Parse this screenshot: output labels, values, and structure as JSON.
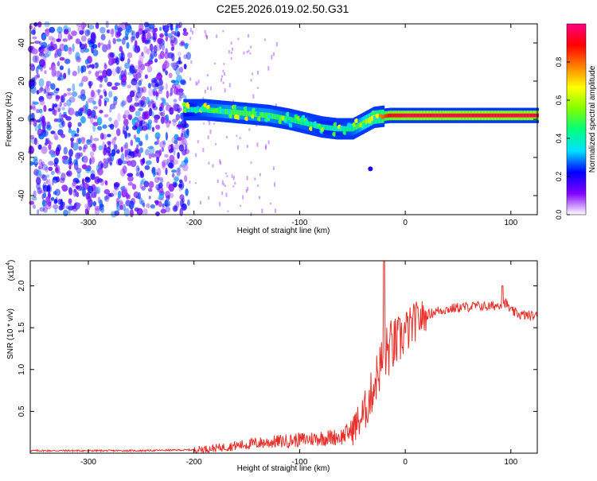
{
  "title": "C2E5.2026.019.02.50.G31",
  "chart_data": [
    {
      "type": "heatmap",
      "title": "C2E5.2026.019.02.50.G31",
      "xlabel": "Height of straight line (km)",
      "ylabel": "Frequency (Hz)",
      "xlim": [
        -355,
        125
      ],
      "ylim": [
        -50,
        50
      ],
      "x_ticks": [
        -300,
        -200,
        -100,
        0,
        100
      ],
      "y_ticks": [
        -40,
        -20,
        0,
        20,
        40
      ],
      "grid": false,
      "colorbar": {
        "label": "Normalized spectral amplitude",
        "range": [
          0.0,
          1.0
        ],
        "ticks": [
          "0.0",
          "0.2",
          "0.4",
          "0.6",
          "0.8"
        ],
        "colors": [
          "#ffffff",
          "#8000ff",
          "#0000ff",
          "#00e0ff",
          "#00ff80",
          "#80ff00",
          "#ffff00",
          "#ff8000",
          "#ff0000",
          "#ff0080"
        ]
      },
      "noise_region": {
        "x_from": -355,
        "x_to": -205,
        "amplitude_range": [
          0.05,
          0.3
        ]
      },
      "ridge": [
        {
          "x": -210,
          "y": 5,
          "amp": 0.35
        },
        {
          "x": -190,
          "y": 5,
          "amp": 0.45
        },
        {
          "x": -170,
          "y": 4,
          "amp": 0.5
        },
        {
          "x": -150,
          "y": 3,
          "amp": 0.5
        },
        {
          "x": -130,
          "y": 2,
          "amp": 0.5
        },
        {
          "x": -110,
          "y": 0,
          "amp": 0.45
        },
        {
          "x": -95,
          "y": -2,
          "amp": 0.45
        },
        {
          "x": -80,
          "y": -4,
          "amp": 0.4
        },
        {
          "x": -65,
          "y": -5,
          "amp": 0.4
        },
        {
          "x": -50,
          "y": -5,
          "amp": 0.45
        },
        {
          "x": -40,
          "y": -2,
          "amp": 0.55
        },
        {
          "x": -30,
          "y": 1,
          "amp": 0.7
        },
        {
          "x": -15,
          "y": 2,
          "amp": 0.9
        },
        {
          "x": 0,
          "y": 2,
          "amp": 0.95
        },
        {
          "x": 25,
          "y": 2,
          "amp": 0.95
        },
        {
          "x": 60,
          "y": 2,
          "amp": 0.95
        },
        {
          "x": 100,
          "y": 2,
          "amp": 0.95
        },
        {
          "x": 125,
          "y": 2,
          "amp": 0.95
        }
      ],
      "outliers": [
        {
          "x": -33,
          "y": -26
        }
      ]
    },
    {
      "type": "line",
      "xlabel": "Height of straight line (km)",
      "ylabel": "SNR (10 * v/v)",
      "y_multiplier": "(x10",
      "y_multiplier_exp": "4",
      "xlim": [
        -355,
        125
      ],
      "ylim": [
        0,
        2.3
      ],
      "x_ticks": [
        -300,
        -200,
        -100,
        0,
        100
      ],
      "y_ticks": [
        0.5,
        1.0,
        1.5,
        2.0
      ],
      "y_tick_labels": [
        "0.5",
        "1.0",
        "1.5",
        "2.0"
      ],
      "grid": false,
      "series_color": "#e8302a",
      "series": [
        {
          "x": [
            -355,
            -300,
            -250,
            -200,
            -180,
            -160,
            -140,
            -120,
            -100,
            -80,
            -60,
            -50,
            -40,
            -35,
            -30,
            -25,
            -20,
            -15,
            -10,
            -5,
            0,
            5,
            10,
            20,
            30,
            40,
            50,
            60,
            70,
            80,
            90,
            95,
            100,
            110,
            125
          ],
          "y": [
            0.03,
            0.03,
            0.03,
            0.04,
            0.06,
            0.09,
            0.12,
            0.14,
            0.16,
            0.18,
            0.2,
            0.28,
            0.45,
            0.6,
            0.8,
            1.0,
            1.15,
            1.25,
            1.3,
            1.35,
            1.45,
            1.5,
            1.58,
            1.65,
            1.7,
            1.72,
            1.74,
            1.75,
            1.76,
            1.75,
            1.78,
            1.8,
            1.7,
            1.65,
            1.64
          ]
        }
      ],
      "annotations": [
        {
          "x": -20,
          "y": 2.3,
          "note": "peak"
        }
      ]
    }
  ]
}
